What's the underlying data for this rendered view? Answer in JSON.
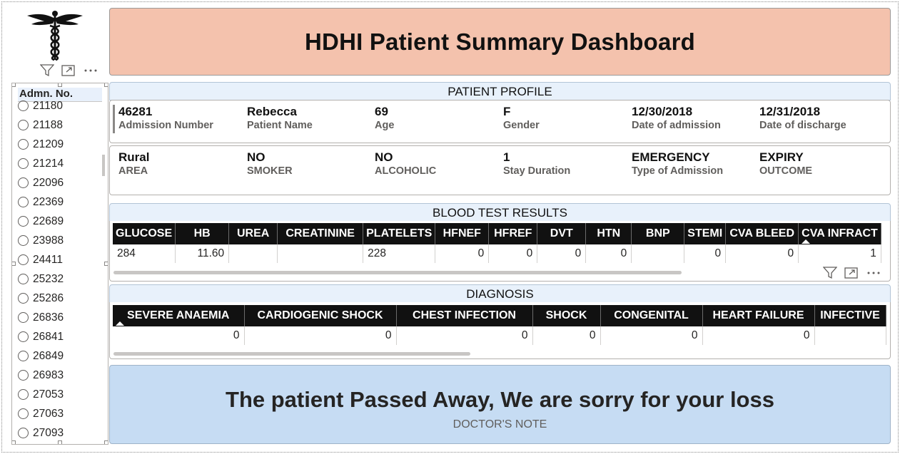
{
  "dashboard": {
    "title": "HDHI Patient Summary Dashboard"
  },
  "slicer": {
    "header": "Admn. No.",
    "items": [
      "21180",
      "21188",
      "21209",
      "21214",
      "22096",
      "22369",
      "22689",
      "23988",
      "24411",
      "25232",
      "25286",
      "26836",
      "26841",
      "26849",
      "26983",
      "27053",
      "27063",
      "27093"
    ]
  },
  "profile": {
    "section_title": "PATIENT PROFILE",
    "row1": [
      {
        "value": "46281",
        "label": "Admission Number"
      },
      {
        "value": "Rebecca",
        "label": "Patient Name"
      },
      {
        "value": "69",
        "label": "Age"
      },
      {
        "value": "F",
        "label": "Gender"
      },
      {
        "value": "12/30/2018",
        "label": "Date of admission"
      },
      {
        "value": "12/31/2018",
        "label": "Date of discharge"
      }
    ],
    "row2": [
      {
        "value": "Rural",
        "label": "AREA"
      },
      {
        "value": "NO",
        "label": "SMOKER"
      },
      {
        "value": "NO",
        "label": "ALCOHOLIC"
      },
      {
        "value": "1",
        "label": "Stay Duration"
      },
      {
        "value": "EMERGENCY",
        "label": "Type of Admission"
      },
      {
        "value": "EXPIRY",
        "label": "OUTCOME"
      }
    ]
  },
  "blood": {
    "section_title": "BLOOD TEST RESULTS",
    "columns": [
      "GLUCOSE",
      "HB",
      "UREA",
      "CREATININE",
      "PLATELETS",
      "HFNEF",
      "HFREF",
      "DVT",
      "HTN",
      "BNP",
      "STEMI",
      "CVA BLEED",
      "CVA INFRACT"
    ],
    "row": [
      "284",
      "11.60",
      "",
      "",
      "228",
      "0",
      "0",
      "0",
      "0",
      "",
      "0",
      "0",
      "1"
    ]
  },
  "diagnosis": {
    "section_title": "DIAGNOSIS",
    "columns": [
      "SEVERE ANAEMIA",
      "CARDIOGENIC SHOCK",
      "CHEST INFECTION",
      "SHOCK",
      "CONGENITAL",
      "HEART FAILURE",
      "INFECTIVE"
    ],
    "row": [
      "0",
      "0",
      "0",
      "0",
      "0",
      "0",
      ""
    ]
  },
  "note": {
    "message": "The patient Passed Away, We are sorry for your loss",
    "caption": "DOCTOR'S NOTE"
  },
  "icons": [
    "caduceus-icon",
    "filter-icon",
    "focus-mode-icon",
    "more-options-icon",
    "radio-icon",
    "sort-indicator-icon"
  ],
  "colors": {
    "title_bg": "#f4c2ad",
    "note_bg": "#c6dcf3",
    "section_head_bg": "#e8f1fb",
    "table_header_bg": "#111111"
  }
}
